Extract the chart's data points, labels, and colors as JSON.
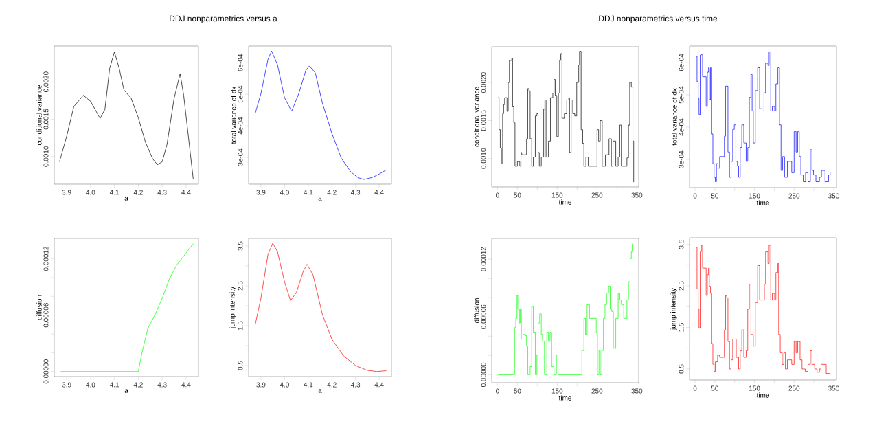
{
  "chart_data": [
    {
      "type": "line",
      "title": "DDJ nonparametrics versus a",
      "xlabel": "a",
      "ylabel": "conditional variance",
      "color": "#000000",
      "xlim": [
        3.848,
        4.452
      ],
      "ylim": [
        0.00063,
        0.00248
      ],
      "xticks": [
        3.9,
        {
          "value": 4.0,
          "label": "4.0"
        },
        4.1,
        4.2,
        4.3,
        4.4
      ],
      "yticks": [
        {
          "value": 0.001,
          "label": "0.0010"
        },
        {
          "value": 0.0015,
          "label": "0.0015"
        },
        {
          "value": 0.002,
          "label": "0.0020"
        }
      ],
      "x": [
        3.87,
        3.9,
        3.93,
        3.97,
        4.0,
        4.04,
        4.06,
        4.08,
        4.1,
        4.12,
        4.14,
        4.17,
        4.2,
        4.23,
        4.26,
        4.28,
        4.3,
        4.32,
        4.35,
        4.375,
        4.39,
        4.43
      ],
      "values": [
        0.00093,
        0.00127,
        0.00167,
        0.00182,
        0.00174,
        0.00151,
        0.00163,
        0.00218,
        0.0024,
        0.00218,
        0.00189,
        0.00178,
        0.00152,
        0.00119,
        0.00097,
        0.00089,
        0.00093,
        0.00116,
        0.00178,
        0.00211,
        0.00182,
        0.0007
      ]
    },
    {
      "type": "line",
      "xlabel": "a",
      "ylabel": "total variance of dx",
      "color": "#0000ff",
      "xlim": [
        3.848,
        4.452
      ],
      "ylim": [
        0.000215,
        0.000653
      ],
      "xticks": [
        3.9,
        {
          "value": 4.0,
          "label": "4.0"
        },
        4.1,
        4.2,
        4.3,
        4.4
      ],
      "yticks": [
        {
          "value": 0.0003,
          "label": "3e-04"
        },
        {
          "value": 0.0004,
          "label": "4e-04"
        },
        {
          "value": 0.0005,
          "label": "5e-04"
        },
        {
          "value": 0.0006,
          "label": "6e-04"
        }
      ],
      "x": [
        3.875,
        3.9,
        3.93,
        3.945,
        3.97,
        4.0,
        4.03,
        4.06,
        4.09,
        4.105,
        4.13,
        4.16,
        4.2,
        4.24,
        4.28,
        4.31,
        4.335,
        4.37,
        4.4,
        4.43
      ],
      "values": [
        0.000437,
        0.000502,
        0.000611,
        0.000637,
        0.000594,
        0.000489,
        0.000446,
        0.000502,
        0.000576,
        0.00059,
        0.000568,
        0.000472,
        0.000376,
        0.000297,
        0.000254,
        0.000236,
        0.00023,
        0.000236,
        0.000247,
        0.00026
      ]
    },
    {
      "type": "line",
      "xlabel": "a",
      "ylabel": "diffusion",
      "color": "#00ff00",
      "xlim": [
        3.848,
        4.452
      ],
      "ylim": [
        -5.3e-06,
        0.0001416
      ],
      "xticks": [
        3.9,
        {
          "value": 4.0,
          "label": "4.0"
        },
        4.1,
        4.2,
        4.3,
        4.4
      ],
      "yticks": [
        {
          "value": 0,
          "label": "0.00000"
        },
        {
          "value": 2e-05,
          "label": null
        },
        {
          "value": 4e-05,
          "label": null
        },
        {
          "value": 6e-05,
          "label": "0.00006"
        },
        {
          "value": 8e-05,
          "label": null
        },
        {
          "value": 0.0001,
          "label": null
        },
        {
          "value": 0.00012,
          "label": "0.00012"
        }
      ],
      "x": [
        3.875,
        4.2,
        4.215,
        4.24,
        4.27,
        4.3,
        4.33,
        4.36,
        4.4,
        4.43
      ],
      "values": [
        0,
        0,
        1.96e-05,
        4.58e-05,
        6.04e-05,
        7.8e-05,
        9.84e-05,
        0.000113,
        0.000126,
        0.000136
      ]
    },
    {
      "type": "line",
      "xlabel": "a",
      "ylabel": "jump intensity",
      "color": "#ff0000",
      "xlim": [
        3.848,
        4.452
      ],
      "ylim": [
        0.224,
        3.69
      ],
      "xticks": [
        3.9,
        {
          "value": 4.0,
          "label": "4.0"
        },
        4.1,
        4.2,
        4.3,
        4.4
      ],
      "yticks": [
        0.5,
        {
          "value": 1.0,
          "label": null
        },
        1.5,
        {
          "value": 2.0,
          "label": null
        },
        2.5,
        {
          "value": 3.0,
          "label": null
        },
        3.5
      ],
      "x": [
        3.875,
        3.9,
        3.93,
        3.95,
        3.97,
        4.0,
        4.025,
        4.05,
        4.08,
        4.095,
        4.12,
        4.16,
        4.2,
        4.25,
        4.3,
        4.35,
        4.39,
        4.43
      ],
      "values": [
        1.5,
        2.19,
        3.29,
        3.57,
        3.36,
        2.6,
        2.13,
        2.33,
        2.88,
        3.04,
        2.78,
        1.78,
        1.16,
        0.74,
        0.5,
        0.38,
        0.35,
        0.37
      ]
    },
    {
      "type": "step",
      "title": "DDJ nonparametrics versus time",
      "xlabel": "time",
      "ylabel": "conditional variance",
      "color": "#000000",
      "xlim": [
        -14.4,
        354.6
      ],
      "ylim": [
        0.000628,
        0.00247
      ],
      "xticks": [
        0,
        50,
        {
          "value": 100,
          "label": null
        },
        150,
        {
          "value": 200,
          "label": null
        },
        250,
        {
          "value": 300,
          "label": null
        },
        350
      ],
      "yticks": [
        {
          "value": 0.001,
          "label": "0.0010"
        },
        {
          "value": 0.0015,
          "label": "0.0015"
        },
        {
          "value": 0.002,
          "label": "0.0020"
        }
      ],
      "x": [
        1,
        4,
        7,
        10,
        13,
        15.5,
        18,
        24,
        27,
        30,
        36,
        38,
        41,
        44,
        50,
        56,
        59,
        61,
        70,
        73,
        76,
        79,
        82,
        86,
        90,
        95,
        99,
        102,
        105,
        110,
        116,
        119,
        122,
        128,
        133,
        139,
        142,
        145,
        149,
        153,
        156,
        159,
        162,
        168,
        174,
        179,
        181,
        185,
        189,
        194,
        199,
        204,
        206,
        210,
        214,
        217,
        222,
        228,
        245,
        250,
        254,
        258,
        263,
        271,
        280,
        286,
        290,
        297,
        303,
        307,
        311,
        325,
        329,
        332,
        336,
        340,
        342
      ],
      "values": [
        0.0018,
        0.00138,
        0.00114,
        0.00093,
        0.00159,
        0.00171,
        0.0018,
        0.00162,
        0.002,
        0.00229,
        0.00232,
        0.00168,
        0.00147,
        0.0009,
        0.00096,
        0.0009,
        0.00108,
        0.00105,
        0.00105,
        0.00126,
        0.00192,
        0.00189,
        0.00126,
        0.0009,
        0.00102,
        0.00156,
        0.00159,
        0.00108,
        0.0009,
        0.00102,
        0.00165,
        0.00177,
        0.00102,
        0.00123,
        0.0018,
        0.00186,
        0.00204,
        0.00183,
        0.00129,
        0.00186,
        0.00229,
        0.00238,
        0.00153,
        0.00159,
        0.00177,
        0.0018,
        0.00108,
        0.00177,
        0.00159,
        0.00156,
        0.002,
        0.00223,
        0.00241,
        0.00138,
        0.0012,
        0.0009,
        0.00102,
        0.0009,
        0.0009,
        0.00138,
        0.00123,
        0.0015,
        0.0009,
        0.00105,
        0.00126,
        0.0009,
        0.00123,
        0.0009,
        0.00102,
        0.00144,
        0.0009,
        0.00101,
        0.00144,
        0.002,
        0.00194,
        0.00123,
        0.00069
      ]
    },
    {
      "type": "step",
      "xlabel": "time",
      "ylabel": "total variance of dx",
      "color": "#0000ff",
      "xlim": [
        -13.9,
        357
      ],
      "ylim": [
        0.000213,
        0.000651
      ],
      "xticks": [
        0,
        50,
        {
          "value": 100,
          "label": null
        },
        150,
        {
          "value": 200,
          "label": null
        },
        250,
        {
          "value": 300,
          "label": null
        },
        350
      ],
      "yticks": [
        {
          "value": 0.0003,
          "label": "3e-04"
        },
        {
          "value": 0.0004,
          "label": "4e-04"
        },
        {
          "value": 0.0005,
          "label": "5e-04"
        },
        {
          "value": 0.0006,
          "label": "6e-04"
        }
      ],
      "x": [
        2,
        5,
        8,
        10,
        13,
        16,
        19,
        25,
        28,
        31,
        34,
        36,
        39,
        42,
        45,
        48,
        51,
        54,
        58,
        62,
        68,
        74,
        77,
        80,
        83,
        87,
        91,
        95,
        99,
        103,
        107,
        110,
        114,
        118,
        123,
        129,
        133,
        137,
        141,
        144,
        147,
        152,
        158,
        163,
        169,
        174,
        178,
        184,
        187,
        191,
        195,
        201,
        204,
        209,
        213,
        217,
        221,
        226,
        233,
        244,
        250,
        255,
        259,
        263,
        267,
        273,
        279,
        285,
        291,
        295,
        299,
        305,
        314,
        319,
        328,
        337,
        341
      ],
      "values": [
        0.000619,
        0.000541,
        0.000488,
        0.000439,
        0.000623,
        0.000626,
        0.000556,
        0.000556,
        0.000464,
        0.00057,
        0.000584,
        0.000485,
        0.000584,
        0.000379,
        0.000287,
        0.000245,
        0.000231,
        0.000287,
        0.000273,
        0.000309,
        0.000309,
        0.000372,
        0.000527,
        0.000527,
        0.000323,
        0.000245,
        0.000294,
        0.000393,
        0.000407,
        0.000294,
        0.00028,
        0.000245,
        0.000337,
        0.000407,
        0.000351,
        0.000294,
        0.000337,
        0.000492,
        0.000563,
        0.00045,
        0.000351,
        0.000513,
        0.000584,
        0.000457,
        0.00045,
        0.000506,
        0.000598,
        0.000591,
        0.000633,
        0.00045,
        0.000464,
        0.00045,
        0.000534,
        0.000584,
        0.000407,
        0.000266,
        0.000309,
        0.000245,
        0.000294,
        0.000259,
        0.000386,
        0.000323,
        0.000386,
        0.000309,
        0.000252,
        0.000231,
        0.000259,
        0.000231,
        0.00033,
        0.000266,
        0.000252,
        0.000231,
        0.000245,
        0.000266,
        0.000231,
        0.000252,
        0.000259
      ]
    },
    {
      "type": "step",
      "xlabel": "time",
      "ylabel": "diffusion",
      "color": "#00ff00",
      "xlim": [
        -14.4,
        354.6
      ],
      "ylim": [
        -8.3e-06,
        0.0001415
      ],
      "xticks": [
        0,
        50,
        {
          "value": 100,
          "label": null
        },
        150,
        {
          "value": 200,
          "label": null
        },
        250,
        {
          "value": 300,
          "label": null
        },
        350
      ],
      "yticks": [
        {
          "value": 0,
          "label": "0.00000"
        },
        {
          "value": 2e-05,
          "label": null
        },
        {
          "value": 4e-05,
          "label": null
        },
        {
          "value": 6e-05,
          "label": "0.00006"
        },
        {
          "value": 8e-05,
          "label": null
        },
        {
          "value": 0.0001,
          "label": null
        },
        {
          "value": 0.00012,
          "label": "0.00012"
        }
      ],
      "x": [
        1,
        37,
        40,
        43,
        46,
        49,
        51,
        55,
        57,
        60,
        64,
        70,
        73,
        76,
        82,
        86,
        90,
        95,
        99,
        102,
        106,
        110,
        113,
        118,
        124,
        128,
        132,
        136,
        142,
        148,
        152,
        210,
        212,
        217,
        221,
        225,
        231,
        237,
        244,
        248,
        251,
        255,
        258,
        262,
        266,
        270,
        274,
        279,
        283,
        287,
        291,
        297,
        303,
        307,
        311,
        317,
        325,
        329,
        333,
        336,
        338
      ],
      "values": [
        0,
        0,
        0,
        4.89e-05,
        5.85e-05,
        8.23e-05,
        6.8e-05,
        5.37e-05,
        6.8e-05,
        3.7e-05,
        4.18e-05,
        4.06e-05,
        2.98e-05,
        0,
        8.4e-06,
        7.04e-05,
        4.41e-05,
        0,
        2.03e-05,
        5.37e-05,
        6.32e-05,
        4.18e-05,
        3.46e-05,
        0,
        4.41e-05,
        3.46e-05,
        4.41e-05,
        8.4e-06,
        0,
        2.03e-05,
        0,
        0,
        2.51e-05,
        5.85e-05,
        4.18e-05,
        7.28e-05,
        5.85e-05,
        5.85e-05,
        5.85e-05,
        4.41e-05,
        0,
        2.51e-05,
        0,
        2.51e-05,
        5.85e-05,
        7.28e-05,
        8.47e-05,
        9.19e-05,
        6.8e-05,
        6.56e-05,
        2.74e-05,
        5.85e-05,
        8.47e-05,
        7.75e-05,
        7.28e-05,
        5.85e-05,
        7.75e-05,
        9.66e-05,
        0.0001205,
        0.0001276,
        0.000136
      ]
    },
    {
      "type": "step",
      "xlabel": "time",
      "ylabel": "jump intensity",
      "color": "#ff0000",
      "xlim": [
        -13.9,
        357
      ],
      "ylim": [
        0.235,
        3.66
      ],
      "xticks": [
        0,
        50,
        {
          "value": 100,
          "label": null
        },
        150,
        {
          "value": 200,
          "label": null
        },
        250,
        {
          "value": 300,
          "label": null
        },
        350
      ],
      "yticks": [
        0.5,
        {
          "value": 1.0,
          "label": null
        },
        1.5,
        {
          "value": 2.0,
          "label": null
        },
        2.5,
        {
          "value": 3.0,
          "label": null
        },
        3.5
      ],
      "x": [
        2,
        5,
        8,
        10,
        13,
        16,
        19,
        25,
        28,
        31,
        34,
        36,
        39,
        42,
        45,
        48,
        51,
        57,
        62,
        68,
        74,
        77,
        80,
        83,
        87,
        91,
        95,
        100,
        104,
        110,
        114,
        118,
        123,
        129,
        133,
        137,
        141,
        147,
        152,
        158,
        163,
        169,
        175,
        178,
        184,
        187,
        191,
        195,
        201,
        204,
        209,
        211,
        215,
        220,
        224,
        228,
        233,
        244,
        250,
        255,
        259,
        265,
        270,
        278,
        285,
        291,
        295,
        302,
        308,
        314,
        318,
        326,
        331,
        341
      ],
      "values": [
        3.43,
        2.43,
        1.94,
        1.49,
        3.32,
        3.48,
        2.93,
        2.93,
        2.27,
        2.77,
        2.93,
        2.49,
        2.32,
        1.11,
        0.61,
        0.44,
        0.67,
        0.83,
        0.78,
        0.78,
        1.44,
        2.27,
        2.21,
        1.16,
        0.5,
        0.72,
        1.22,
        1.22,
        0.78,
        0.5,
        0.94,
        1.44,
        0.78,
        0.94,
        1.94,
        2.54,
        1.33,
        1.05,
        2.1,
        2.99,
        2.16,
        2.16,
        2.54,
        3.32,
        3.04,
        3.48,
        2.16,
        2.32,
        2.16,
        2.82,
        3.04,
        1.33,
        0.89,
        0.61,
        0.89,
        0.5,
        0.72,
        0.61,
        1.16,
        0.89,
        1.16,
        0.72,
        0.5,
        0.44,
        0.61,
        0.94,
        0.61,
        0.5,
        0.42,
        0.5,
        0.61,
        0.61,
        0.39,
        0.36
      ]
    }
  ]
}
